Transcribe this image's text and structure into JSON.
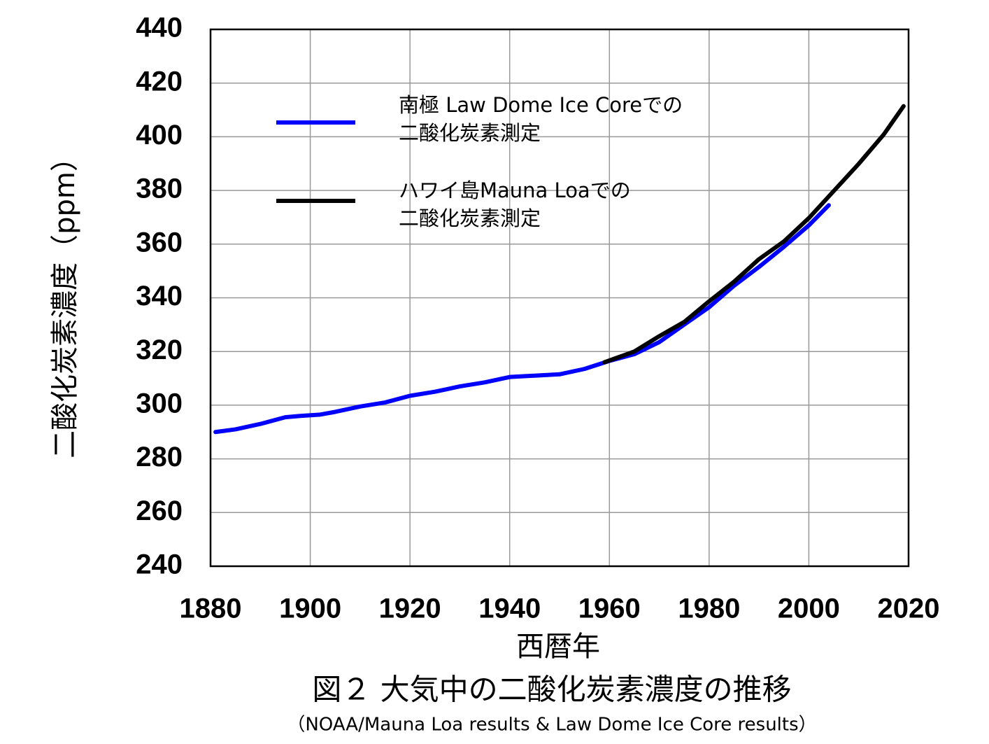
{
  "chart_data": {
    "type": "line",
    "title": "図２ 大気中の二酸化炭素濃度の推移",
    "subtitle": "（NOAA/Mauna Loa results & Law Dome Ice Core results）",
    "x_label": "西暦年",
    "y_label": "二酸化炭素濃度（ppm）",
    "xlim": [
      1880,
      2020
    ],
    "xticks": [
      1880,
      1900,
      1920,
      1940,
      1960,
      1980,
      2000,
      2020
    ],
    "ylim": [
      240,
      440
    ],
    "yticks": [
      240,
      260,
      280,
      300,
      320,
      340,
      360,
      380,
      400,
      420,
      440
    ],
    "grid": true,
    "series": [
      {
        "name": "南極 Law Dome Ice Coreでの\n二酸化炭素測定",
        "color": "#0000ff",
        "x": [
          1881,
          1885,
          1890,
          1895,
          1898,
          1902,
          1905,
          1910,
          1915,
          1920,
          1925,
          1930,
          1935,
          1940,
          1945,
          1950,
          1955,
          1960,
          1965,
          1970,
          1975,
          1980,
          1985,
          1990,
          1995,
          2000,
          2004
        ],
        "values": [
          290,
          291,
          293,
          295.5,
          296,
          296.5,
          297.5,
          299.5,
          301,
          303.5,
          305,
          307,
          308.5,
          310.5,
          311,
          311.5,
          313.5,
          316.5,
          319,
          323.5,
          330,
          336.5,
          344.5,
          351.5,
          359,
          367,
          374.5
        ]
      },
      {
        "name": "ハワイ島Mauna Loaでの\n二酸化炭素測定",
        "color": "#000000",
        "x": [
          1959,
          1965,
          1970,
          1975,
          1980,
          1985,
          1990,
          1995,
          2000,
          2005,
          2010,
          2015,
          2019
        ],
        "values": [
          316,
          320,
          325.7,
          331,
          338.7,
          346,
          354.4,
          361,
          369.7,
          379.8,
          389.9,
          400.8,
          411.4
        ]
      }
    ]
  }
}
